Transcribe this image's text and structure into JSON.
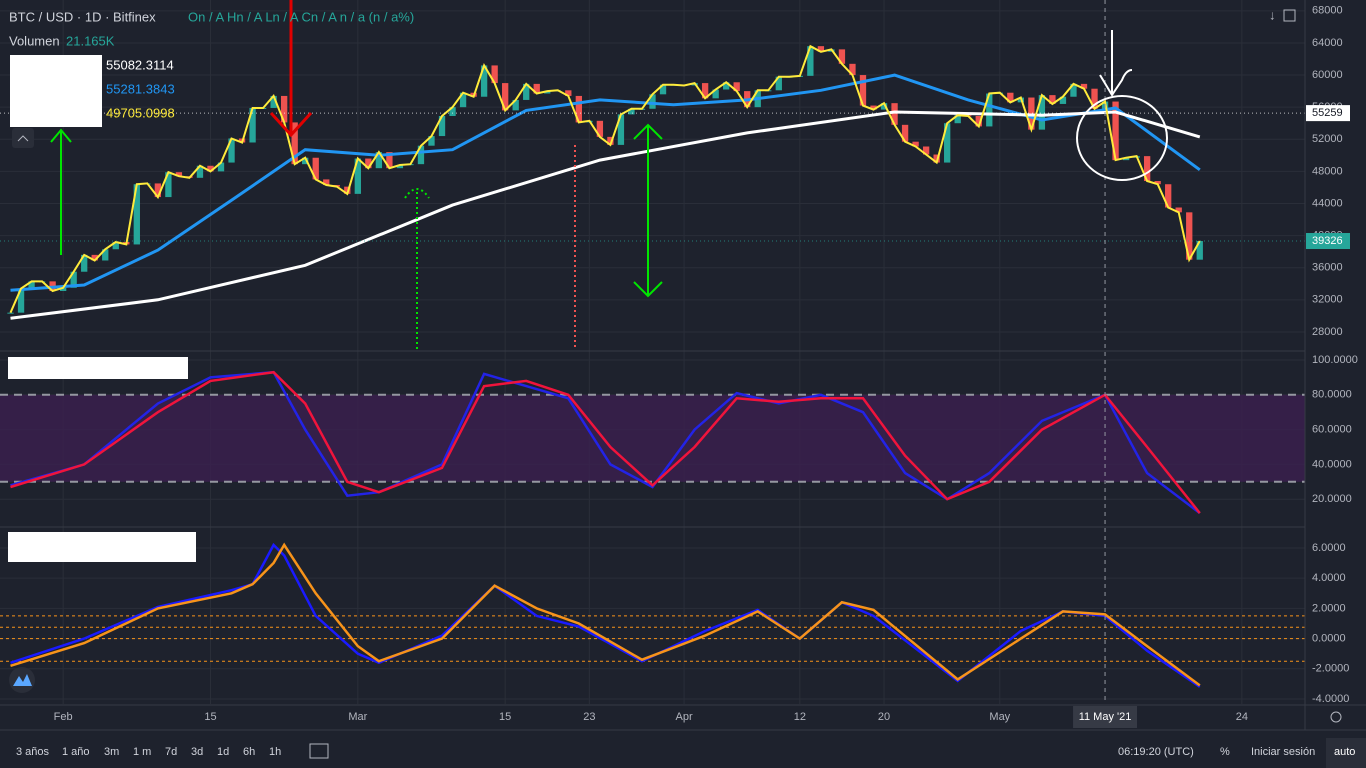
{
  "header": {
    "symbol": "BTC / USD · 1D · Bitfinex",
    "ohlc": "On / A Hn / A Ln / A Cn / A n / a (n / a%)",
    "volume_label": "Volumen",
    "volume_value": "21.165K",
    "legend_values": [
      {
        "value": 55082.3114,
        "color": "#ffffff"
      },
      {
        "value": 55281.3843,
        "color": "#2196f3"
      },
      {
        "value": 49705.0998,
        "color": "#ffeb3b"
      }
    ]
  },
  "crosshair": {
    "label": "11 May '21",
    "x": "2021-05-11"
  },
  "toolbar": {
    "ranges": [
      "3 años",
      "1 año",
      "3m",
      "1 m",
      "7d",
      "3d",
      "1d",
      "6h",
      "1h"
    ],
    "clock": "06:19:20 (UTC)",
    "percent": "%",
    "login": "Iniciar sesión",
    "auto": "auto"
  },
  "chart_data": [
    {
      "type": "candlestick",
      "xlim": [
        "2021-01-26",
        "2021-05-30"
      ],
      "ylim": [
        25750,
        69350
      ],
      "yticks": [
        28000,
        32000,
        36000,
        40000,
        44000,
        48000,
        52000,
        56000,
        60000,
        64000,
        68000
      ],
      "up_color": "#26a69a",
      "down_color": "#ef5350",
      "line_color": "#ffeb3b",
      "x": [
        "2021-01-27",
        "2021-01-28",
        "2021-01-29",
        "2021-01-30",
        "2021-01-31",
        "2021-02-01",
        "2021-02-02",
        "2021-02-03",
        "2021-02-04",
        "2021-02-05",
        "2021-02-06",
        "2021-02-07",
        "2021-02-08",
        "2021-02-09",
        "2021-02-10",
        "2021-02-11",
        "2021-02-12",
        "2021-02-13",
        "2021-02-14",
        "2021-02-15",
        "2021-02-16",
        "2021-02-17",
        "2021-02-18",
        "2021-02-19",
        "2021-02-20",
        "2021-02-21",
        "2021-02-22",
        "2021-02-23",
        "2021-02-24",
        "2021-02-25",
        "2021-02-26",
        "2021-02-27",
        "2021-02-28",
        "2021-03-01",
        "2021-03-02",
        "2021-03-03",
        "2021-03-04",
        "2021-03-05",
        "2021-03-06",
        "2021-03-07",
        "2021-03-08",
        "2021-03-09",
        "2021-03-10",
        "2021-03-11",
        "2021-03-12",
        "2021-03-13",
        "2021-03-14",
        "2021-03-15",
        "2021-03-16",
        "2021-03-17",
        "2021-03-18",
        "2021-03-19",
        "2021-03-20",
        "2021-03-21",
        "2021-03-22",
        "2021-03-23",
        "2021-03-24",
        "2021-03-25",
        "2021-03-26",
        "2021-03-27",
        "2021-03-28",
        "2021-03-29",
        "2021-03-30",
        "2021-03-31",
        "2021-04-01",
        "2021-04-02",
        "2021-04-03",
        "2021-04-04",
        "2021-04-05",
        "2021-04-06",
        "2021-04-07",
        "2021-04-08",
        "2021-04-09",
        "2021-04-10",
        "2021-04-11",
        "2021-04-12",
        "2021-04-13",
        "2021-04-14",
        "2021-04-15",
        "2021-04-16",
        "2021-04-17",
        "2021-04-18",
        "2021-04-19",
        "2021-04-20",
        "2021-04-21",
        "2021-04-22",
        "2021-04-23",
        "2021-04-24",
        "2021-04-25",
        "2021-04-26",
        "2021-04-27",
        "2021-04-28",
        "2021-04-29",
        "2021-04-30",
        "2021-05-01",
        "2021-05-02",
        "2021-05-03",
        "2021-05-04",
        "2021-05-05",
        "2021-05-06",
        "2021-05-07",
        "2021-05-08",
        "2021-05-09",
        "2021-05-10",
        "2021-05-11",
        "2021-05-12",
        "2021-05-13",
        "2021-05-14",
        "2021-05-15",
        "2021-05-16",
        "2021-05-17",
        "2021-05-18",
        "2021-05-19",
        "2021-05-20"
      ],
      "close": [
        30400,
        33400,
        34300,
        34300,
        33100,
        33500,
        35500,
        37600,
        36900,
        38300,
        39200,
        38900,
        46400,
        46500,
        44800,
        47900,
        47400,
        47200,
        48700,
        48000,
        49100,
        52100,
        51600,
        55900,
        55900,
        57400,
        54100,
        48900,
        49700,
        47000,
        46300,
        46100,
        45200,
        49600,
        48400,
        50400,
        48400,
        48800,
        48900,
        51200,
        52400,
        54900,
        56000,
        57800,
        57300,
        61200,
        59000,
        55600,
        56900,
        58900,
        57700,
        58000,
        58100,
        57400,
        54100,
        54300,
        52300,
        51300,
        55100,
        55800,
        55800,
        57600,
        58800,
        58800,
        58700,
        59000,
        57100,
        58200,
        59100,
        58000,
        56000,
        58100,
        58100,
        59800,
        59800,
        59900,
        63600,
        62900,
        63200,
        61400,
        60000,
        56200,
        55700,
        56500,
        53800,
        51700,
        51100,
        50100,
        49100,
        54000,
        55000,
        54900,
        53600,
        57700,
        57800,
        56600,
        57200,
        53200,
        57500,
        56400,
        57300,
        58900,
        58300,
        55800,
        56700,
        49400,
        49700,
        49900,
        46800,
        46400,
        43500,
        42900,
        37000,
        39326
      ],
      "moving_averages": [
        {
          "color": "#2196f3",
          "x": [
            "2021-01-27",
            "2021-02-03",
            "2021-02-10",
            "2021-02-17",
            "2021-02-24",
            "2021-03-03",
            "2021-03-10",
            "2021-03-17",
            "2021-03-24",
            "2021-03-31",
            "2021-04-07",
            "2021-04-14",
            "2021-04-21",
            "2021-04-28",
            "2021-05-05",
            "2021-05-12",
            "2021-05-20"
          ],
          "values": [
            33200,
            33850,
            38200,
            44400,
            50700,
            50000,
            50700,
            55600,
            56900,
            56300,
            56900,
            58100,
            60000,
            56900,
            54400,
            55900,
            48200
          ]
        },
        {
          "color": "#ffffff",
          "x": [
            "2021-01-27",
            "2021-02-10",
            "2021-02-24",
            "2021-03-10",
            "2021-03-24",
            "2021-04-07",
            "2021-04-21",
            "2021-05-05",
            "2021-05-12",
            "2021-05-20"
          ],
          "values": [
            29700,
            32000,
            36300,
            43800,
            49400,
            52800,
            55400,
            55000,
            55400,
            52300
          ]
        }
      ],
      "price_labels": [
        {
          "value": 55259,
          "color": "#ffffff",
          "text_color": "#131722"
        },
        {
          "value": 39326,
          "color": "#26a69a",
          "text_color": "#ffffff"
        }
      ]
    },
    {
      "type": "line",
      "xlim": [
        "2021-01-26",
        "2021-05-30"
      ],
      "ylim": [
        4.6,
        104.6
      ],
      "yticks": [
        {
          "value": 20,
          "label": "20.0000"
        },
        {
          "value": 40,
          "label": "40.0000"
        },
        {
          "value": 60,
          "label": "60.0000"
        },
        {
          "value": 80,
          "label": "80.0000"
        },
        {
          "value": 100,
          "label": "100.0000"
        }
      ],
      "bands": [
        30,
        80
      ],
      "band_color": "#3b1f4f",
      "x": [
        "2021-01-27",
        "2021-02-03",
        "2021-02-10",
        "2021-02-15",
        "2021-02-21",
        "2021-02-24",
        "2021-02-28",
        "2021-03-03",
        "2021-03-09",
        "2021-03-13",
        "2021-03-17",
        "2021-03-21",
        "2021-03-25",
        "2021-03-29",
        "2021-04-02",
        "2021-04-06",
        "2021-04-10",
        "2021-04-14",
        "2021-04-18",
        "2021-04-22",
        "2021-04-26",
        "2021-04-30",
        "2021-05-05",
        "2021-05-11",
        "2021-05-15",
        "2021-05-20"
      ],
      "series": [
        {
          "color": "#2323e6",
          "values": [
            28,
            40,
            75,
            90,
            93,
            60,
            22,
            24,
            40,
            92,
            85,
            78,
            40,
            27,
            60,
            81,
            75,
            80,
            70,
            35,
            20,
            35,
            65,
            80,
            35,
            12
          ]
        },
        {
          "color": "#f0143c",
          "values": [
            27,
            40,
            70,
            88,
            93,
            75,
            30,
            24,
            38,
            85,
            88,
            80,
            50,
            28,
            50,
            78,
            76,
            78,
            78,
            45,
            20,
            30,
            60,
            80,
            50,
            12
          ]
        }
      ]
    },
    {
      "type": "line",
      "xlim": [
        "2021-01-26",
        "2021-05-30"
      ],
      "ylim": [
        -4.33,
        7.32
      ],
      "yticks": [
        {
          "value": -4,
          "label": "-4.0000"
        },
        {
          "value": -2,
          "label": "-2.0000"
        },
        {
          "value": 0,
          "label": "0.0000"
        },
        {
          "value": 2,
          "label": "2.0000"
        },
        {
          "value": 4,
          "label": "4.0000"
        },
        {
          "value": 6,
          "label": "6.0000"
        }
      ],
      "levels": [
        1.5,
        0.75,
        0,
        -1.5
      ],
      "level_color": "#f7931a",
      "xticks": [
        {
          "value": "2021-02-01",
          "label": "Feb"
        },
        {
          "value": "2021-02-15",
          "label": "15"
        },
        {
          "value": "2021-03-01",
          "label": "Mar"
        },
        {
          "value": "2021-03-15",
          "label": "15"
        },
        {
          "value": "2021-03-23",
          "label": "23"
        },
        {
          "value": "2021-04-01",
          "label": "Apr"
        },
        {
          "value": "2021-04-12",
          "label": "12"
        },
        {
          "value": "2021-04-20",
          "label": "20"
        },
        {
          "value": "2021-05-01",
          "label": "May"
        },
        {
          "value": "2021-05-24",
          "label": "24"
        }
      ],
      "x": [
        "2021-01-27",
        "2021-02-03",
        "2021-02-10",
        "2021-02-17",
        "2021-02-19",
        "2021-02-21",
        "2021-02-22",
        "2021-02-25",
        "2021-03-01",
        "2021-03-03",
        "2021-03-09",
        "2021-03-14",
        "2021-03-18",
        "2021-03-22",
        "2021-03-28",
        "2021-04-03",
        "2021-04-08",
        "2021-04-12",
        "2021-04-16",
        "2021-04-19",
        "2021-04-27",
        "2021-05-03",
        "2021-05-07",
        "2021-05-11",
        "2021-05-15",
        "2021-05-20"
      ],
      "series": [
        {
          "color": "#1a1aff",
          "values": [
            -1.6,
            0,
            2.1,
            3.2,
            3.6,
            6.2,
            5.5,
            1.5,
            -1,
            -1.6,
            0.2,
            3.5,
            1.5,
            0.8,
            -1.5,
            0.5,
            1.9,
            0,
            2.4,
            1.5,
            -2.8,
            0.5,
            1.8,
            1.5,
            -0.8,
            -3.2
          ]
        },
        {
          "color": "#f7931a",
          "values": [
            -1.8,
            -0.3,
            2,
            3,
            3.6,
            5,
            6.2,
            3,
            -0.5,
            -1.5,
            0,
            3.5,
            2,
            1,
            -1.4,
            0.2,
            1.8,
            0,
            2.4,
            1.9,
            -2.7,
            0,
            1.8,
            1.6,
            -0.5,
            -3.1
          ]
        }
      ]
    }
  ]
}
